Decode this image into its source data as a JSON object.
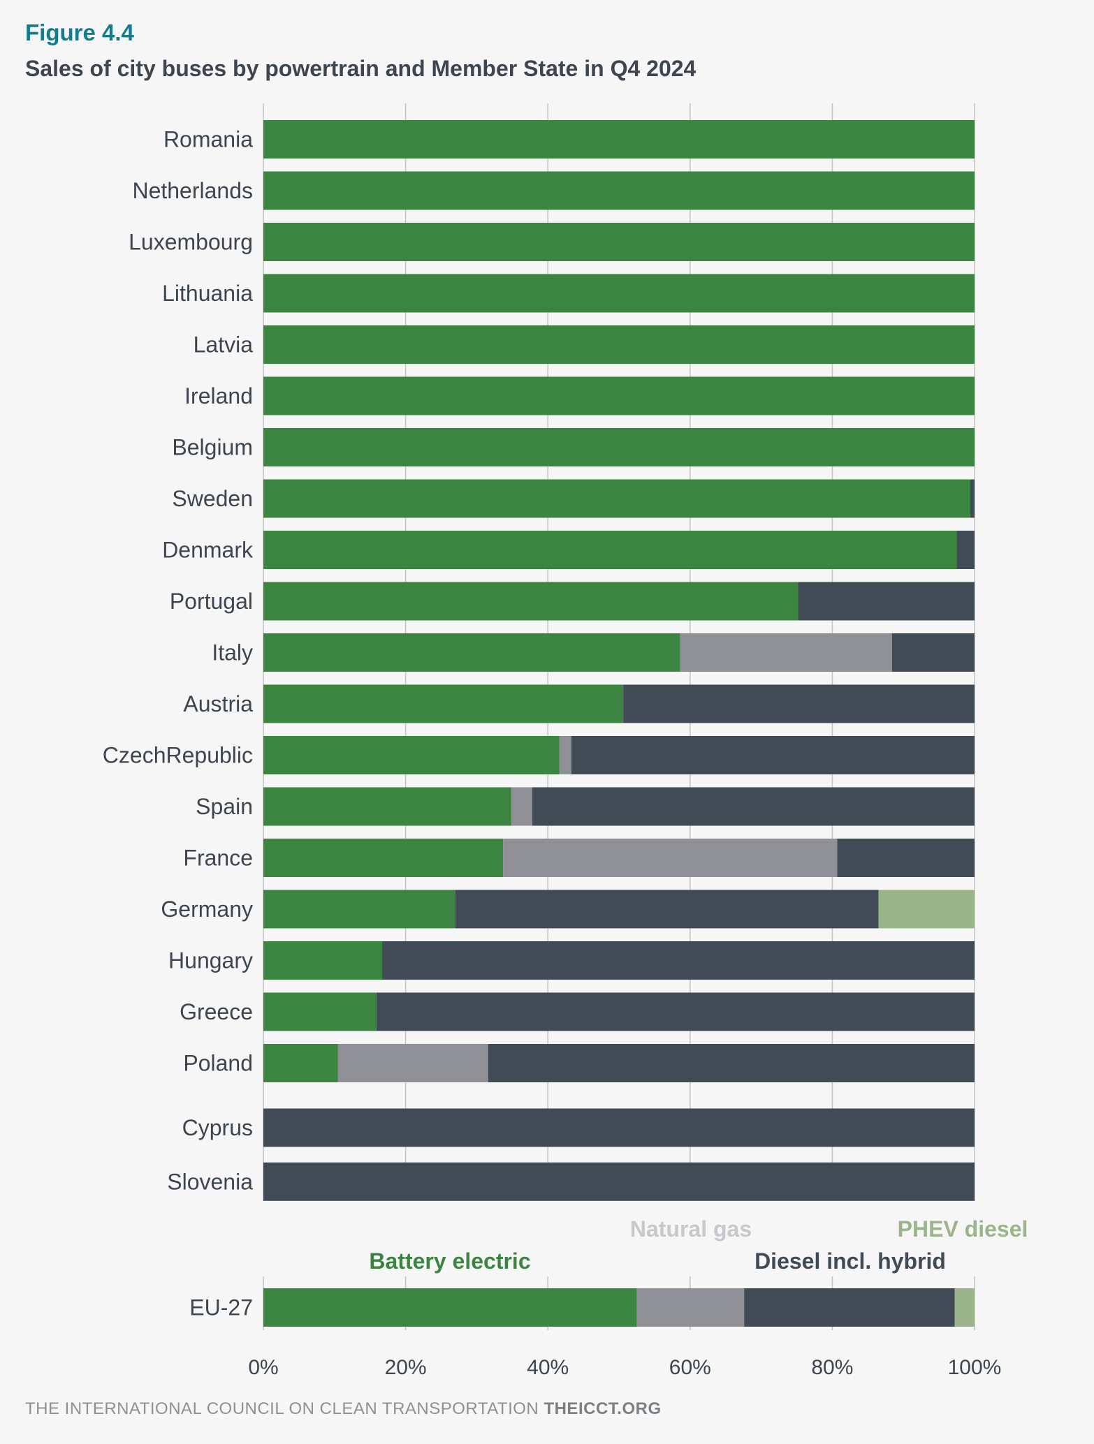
{
  "figure_label": "Figure 4.4",
  "chart_data": {
    "type": "bar",
    "orientation": "horizontal",
    "stacked": true,
    "title": "Sales of city buses by powertrain and Member State in Q4 2024",
    "categories": [
      "Romania",
      "Netherlands",
      "Luxembourg",
      "Lithuania",
      "Latvia",
      "Ireland",
      "Belgium",
      "Sweden",
      "Denmark",
      "Portugal",
      "Italy",
      "Austria",
      "CzechRepublic",
      "Spain",
      "France",
      "Germany",
      "Hungary",
      "Greece",
      "Poland",
      "Cyprus",
      "Slovenia"
    ],
    "series": [
      {
        "name": "Battery electric",
        "color": "#3c8540",
        "values": [
          100,
          100,
          100,
          100,
          100,
          100,
          100,
          99.4,
          97.5,
          75.2,
          58.6,
          50.6,
          41.6,
          34.9,
          33.7,
          27.0,
          16.7,
          15.9,
          10.5,
          0,
          0
        ]
      },
      {
        "name": "Natural gas",
        "color": "#8f8f96",
        "values": [
          0,
          0,
          0,
          0,
          0,
          0,
          0,
          0,
          0,
          0,
          29.8,
          0,
          1.7,
          2.9,
          47.0,
          0,
          0,
          0,
          21.1,
          0,
          0
        ]
      },
      {
        "name": "Diesel incl. hybrid",
        "color": "#404b55",
        "values": [
          0,
          0,
          0,
          0,
          0,
          0,
          0,
          0.6,
          2.5,
          24.8,
          11.6,
          49.4,
          56.7,
          62.2,
          19.3,
          59.5,
          83.3,
          84.1,
          68.4,
          100,
          100
        ]
      },
      {
        "name": "PHEV diesel",
        "color": "#9cb489",
        "values": [
          0,
          0,
          0,
          0,
          0,
          0,
          0,
          0,
          0,
          0,
          0,
          0,
          0,
          0,
          0,
          13.5,
          0,
          0,
          0,
          0,
          0
        ]
      }
    ],
    "summary": {
      "category": "EU-27",
      "values": [
        52.5,
        15.1,
        29.6,
        2.8
      ]
    },
    "x_ticks": [
      "0%",
      "20%",
      "40%",
      "60%",
      "80%",
      "100%"
    ],
    "xlim": [
      0,
      100
    ],
    "grid": true
  },
  "footer": {
    "org": "THE INTERNATIONAL COUNCIL ON CLEAN TRANSPORTATION",
    "site": "THEICCT.ORG"
  }
}
